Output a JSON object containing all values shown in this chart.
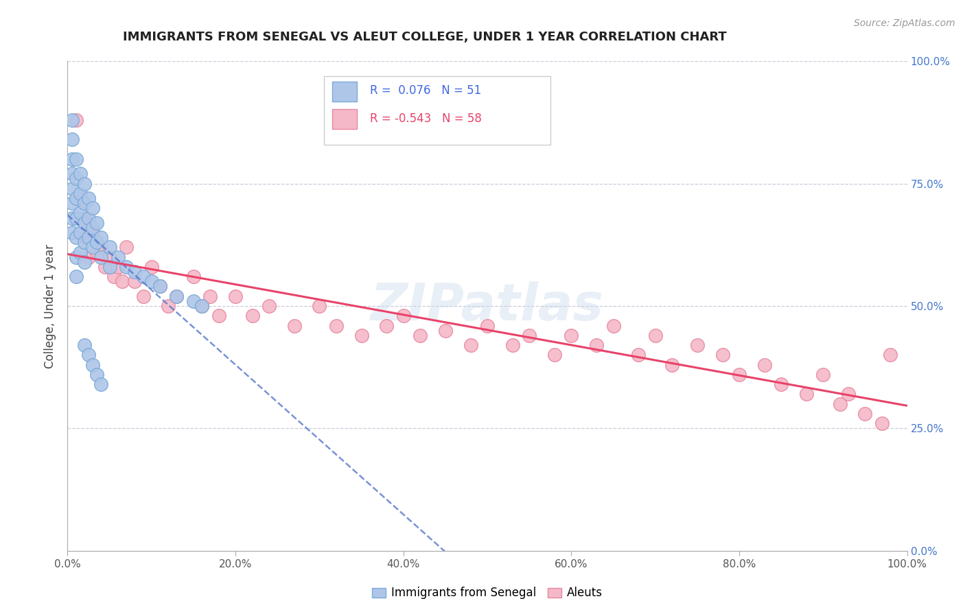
{
  "title": "IMMIGRANTS FROM SENEGAL VS ALEUT COLLEGE, UNDER 1 YEAR CORRELATION CHART",
  "source_text": "Source: ZipAtlas.com",
  "ylabel": "College, Under 1 year",
  "xlim": [
    0.0,
    1.0
  ],
  "ylim": [
    0.0,
    1.0
  ],
  "blue_R": 0.076,
  "blue_N": 51,
  "pink_R": -0.543,
  "pink_N": 58,
  "blue_color": "#aec6e8",
  "pink_color": "#f4b8c8",
  "blue_edge_color": "#7aaad8",
  "pink_edge_color": "#e888a0",
  "blue_line_color": "#5577cc",
  "pink_line_color": "#e8436a",
  "watermark": "ZIPatlas",
  "blue_scatter_x": [
    0.005,
    0.005,
    0.005,
    0.005,
    0.005,
    0.005,
    0.005,
    0.005,
    0.01,
    0.01,
    0.01,
    0.01,
    0.01,
    0.01,
    0.01,
    0.015,
    0.015,
    0.015,
    0.015,
    0.015,
    0.02,
    0.02,
    0.02,
    0.02,
    0.02,
    0.025,
    0.025,
    0.025,
    0.03,
    0.03,
    0.03,
    0.035,
    0.035,
    0.04,
    0.04,
    0.05,
    0.05,
    0.06,
    0.07,
    0.08,
    0.09,
    0.1,
    0.11,
    0.13,
    0.15,
    0.16,
    0.02,
    0.025,
    0.03,
    0.035,
    0.04
  ],
  "blue_scatter_y": [
    0.88,
    0.84,
    0.8,
    0.77,
    0.74,
    0.71,
    0.68,
    0.65,
    0.8,
    0.76,
    0.72,
    0.68,
    0.64,
    0.6,
    0.56,
    0.77,
    0.73,
    0.69,
    0.65,
    0.61,
    0.75,
    0.71,
    0.67,
    0.63,
    0.59,
    0.72,
    0.68,
    0.64,
    0.7,
    0.66,
    0.62,
    0.67,
    0.63,
    0.64,
    0.6,
    0.62,
    0.58,
    0.6,
    0.58,
    0.57,
    0.56,
    0.55,
    0.54,
    0.52,
    0.51,
    0.5,
    0.42,
    0.4,
    0.38,
    0.36,
    0.34
  ],
  "pink_scatter_x": [
    0.01,
    0.015,
    0.02,
    0.02,
    0.025,
    0.03,
    0.035,
    0.04,
    0.045,
    0.05,
    0.055,
    0.06,
    0.065,
    0.07,
    0.08,
    0.09,
    0.1,
    0.11,
    0.12,
    0.13,
    0.15,
    0.16,
    0.17,
    0.18,
    0.2,
    0.22,
    0.24,
    0.27,
    0.3,
    0.32,
    0.35,
    0.38,
    0.4,
    0.42,
    0.45,
    0.48,
    0.5,
    0.53,
    0.55,
    0.58,
    0.6,
    0.63,
    0.65,
    0.68,
    0.7,
    0.72,
    0.75,
    0.78,
    0.8,
    0.83,
    0.85,
    0.88,
    0.9,
    0.92,
    0.93,
    0.95,
    0.97,
    0.98
  ],
  "pink_scatter_y": [
    0.88,
    0.72,
    0.68,
    0.64,
    0.6,
    0.65,
    0.61,
    0.62,
    0.58,
    0.6,
    0.56,
    0.58,
    0.55,
    0.62,
    0.55,
    0.52,
    0.58,
    0.54,
    0.5,
    0.52,
    0.56,
    0.5,
    0.52,
    0.48,
    0.52,
    0.48,
    0.5,
    0.46,
    0.5,
    0.46,
    0.44,
    0.46,
    0.48,
    0.44,
    0.45,
    0.42,
    0.46,
    0.42,
    0.44,
    0.4,
    0.44,
    0.42,
    0.46,
    0.4,
    0.44,
    0.38,
    0.42,
    0.4,
    0.36,
    0.38,
    0.34,
    0.32,
    0.36,
    0.3,
    0.32,
    0.28,
    0.26,
    0.4
  ],
  "background_color": "#ffffff",
  "grid_color": "#ccccdd"
}
